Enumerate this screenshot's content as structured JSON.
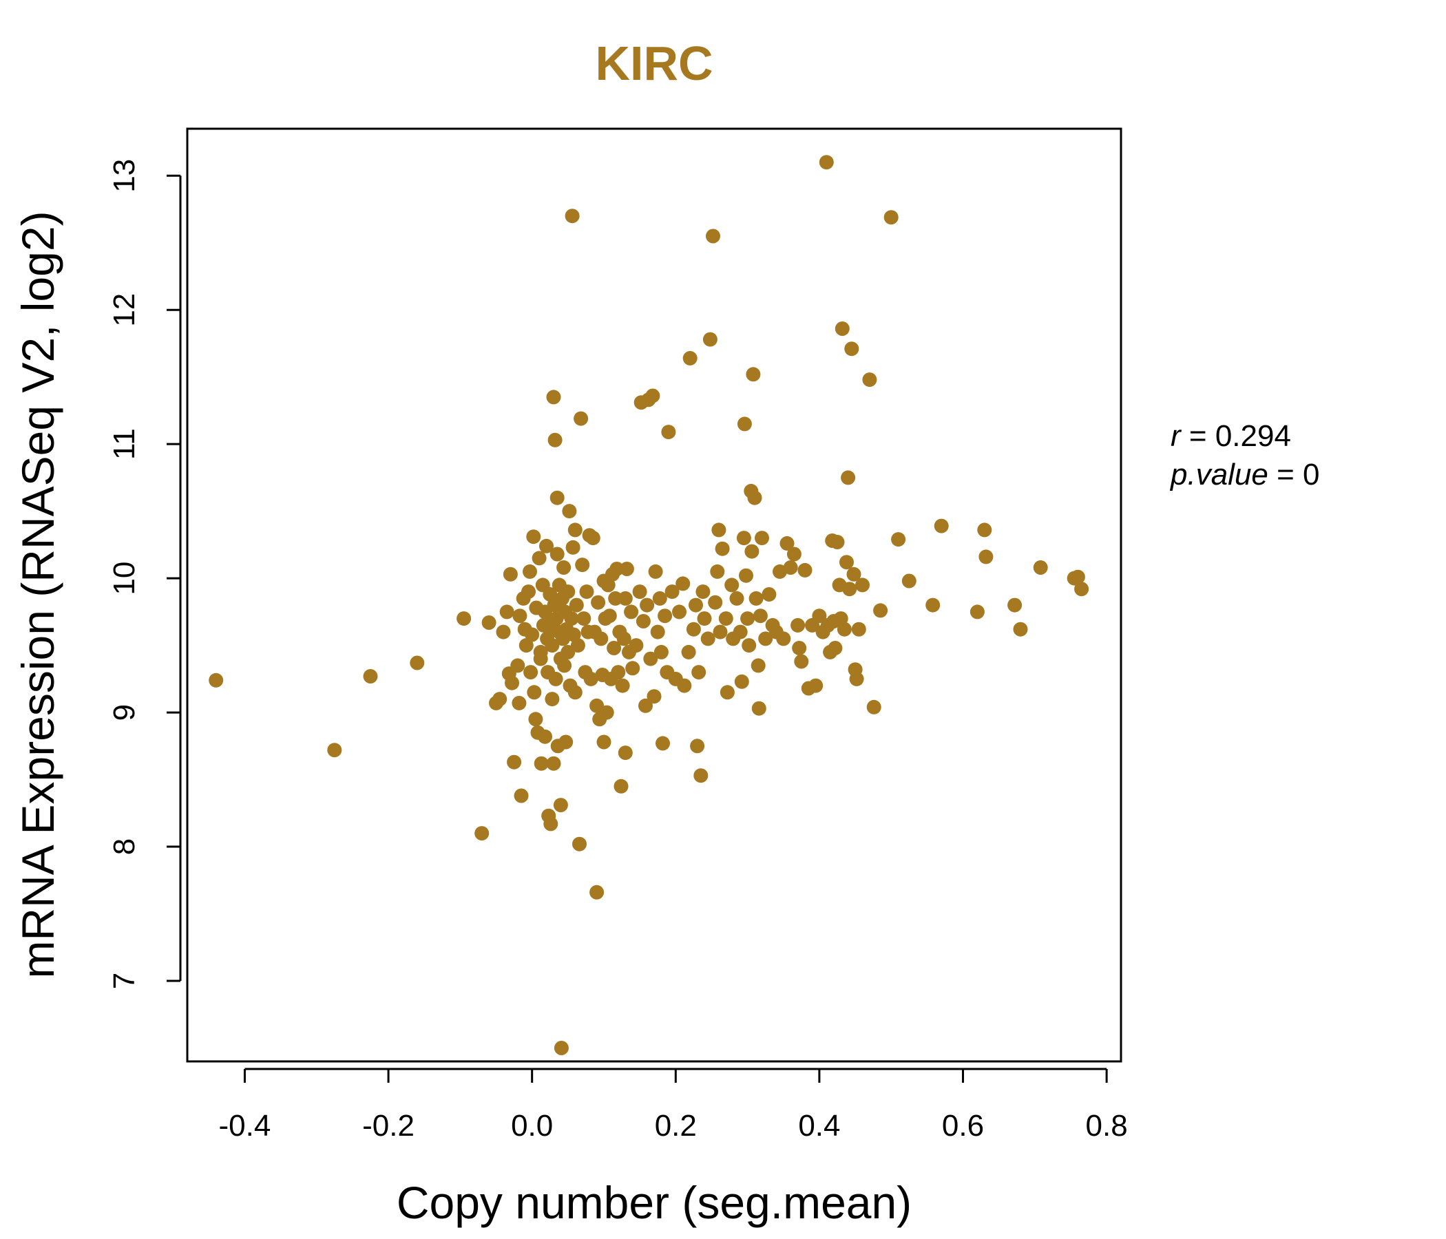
{
  "chart_data": {
    "type": "scatter",
    "title": "KIRC",
    "xlabel": "Copy number (seg.mean)",
    "ylabel": "mRNA Expression (RNASeq V2, log2)",
    "xlim": [
      -0.48,
      0.82
    ],
    "ylim": [
      6.4,
      13.35
    ],
    "xticks": [
      "-0.4",
      "-0.2",
      "0.0",
      "0.2",
      "0.4",
      "0.6",
      "0.8"
    ],
    "xtick_values": [
      -0.4,
      -0.2,
      0.0,
      0.2,
      0.4,
      0.6,
      0.8
    ],
    "yticks": [
      "7",
      "8",
      "9",
      "10",
      "11",
      "12",
      "13"
    ],
    "ytick_values": [
      7,
      8,
      9,
      10,
      11,
      12,
      13
    ],
    "grid": false,
    "point_color": "#A67820",
    "stats": {
      "r": "0.294",
      "p_value": "0"
    },
    "points": [
      [
        -0.44,
        9.24
      ],
      [
        -0.275,
        8.72
      ],
      [
        -0.225,
        9.27
      ],
      [
        -0.16,
        9.37
      ],
      [
        -0.095,
        9.7
      ],
      [
        -0.07,
        8.1
      ],
      [
        -0.06,
        9.67
      ],
      [
        -0.05,
        9.07
      ],
      [
        -0.045,
        9.1
      ],
      [
        -0.04,
        9.6
      ],
      [
        -0.035,
        9.75
      ],
      [
        -0.032,
        9.29
      ],
      [
        -0.03,
        10.03
      ],
      [
        -0.028,
        9.22
      ],
      [
        -0.025,
        8.63
      ],
      [
        -0.02,
        9.35
      ],
      [
        -0.018,
        9.07
      ],
      [
        -0.017,
        9.72
      ],
      [
        -0.015,
        8.38
      ],
      [
        -0.012,
        9.85
      ],
      [
        -0.01,
        9.62
      ],
      [
        -0.008,
        9.5
      ],
      [
        -0.005,
        9.9
      ],
      [
        -0.003,
        10.05
      ],
      [
        -0.002,
        9.3
      ],
      [
        0.0,
        9.58
      ],
      [
        0.002,
        10.31
      ],
      [
        0.003,
        9.15
      ],
      [
        0.005,
        8.95
      ],
      [
        0.006,
        9.78
      ],
      [
        0.008,
        8.85
      ],
      [
        0.01,
        10.15
      ],
      [
        0.012,
        9.45
      ],
      [
        0.012,
        9.4
      ],
      [
        0.013,
        8.62
      ],
      [
        0.015,
        9.95
      ],
      [
        0.016,
        9.65
      ],
      [
        0.018,
        8.82
      ],
      [
        0.018,
        9.75
      ],
      [
        0.02,
        10.24
      ],
      [
        0.021,
        9.55
      ],
      [
        0.022,
        9.3
      ],
      [
        0.023,
        8.23
      ],
      [
        0.025,
        9.88
      ],
      [
        0.025,
        9.62
      ],
      [
        0.026,
        8.17
      ],
      [
        0.027,
        9.68
      ],
      [
        0.028,
        9.1
      ],
      [
        0.028,
        9.5
      ],
      [
        0.03,
        11.35
      ],
      [
        0.03,
        8.62
      ],
      [
        0.031,
        9.8
      ],
      [
        0.032,
        11.03
      ],
      [
        0.033,
        9.25
      ],
      [
        0.034,
        9.7
      ],
      [
        0.035,
        10.18
      ],
      [
        0.035,
        10.6
      ],
      [
        0.036,
        8.75
      ],
      [
        0.038,
        9.6
      ],
      [
        0.038,
        9.95
      ],
      [
        0.04,
        8.31
      ],
      [
        0.04,
        9.4
      ],
      [
        0.041,
        6.5
      ],
      [
        0.042,
        9.85
      ],
      [
        0.043,
        9.55
      ],
      [
        0.044,
        10.08
      ],
      [
        0.045,
        9.35
      ],
      [
        0.046,
        9.75
      ],
      [
        0.047,
        8.78
      ],
      [
        0.048,
        9.62
      ],
      [
        0.05,
        9.45
      ],
      [
        0.05,
        9.9
      ],
      [
        0.052,
        10.5
      ],
      [
        0.053,
        9.2
      ],
      [
        0.055,
        9.7
      ],
      [
        0.056,
        12.7
      ],
      [
        0.057,
        10.23
      ],
      [
        0.058,
        9.58
      ],
      [
        0.06,
        9.15
      ],
      [
        0.06,
        10.36
      ],
      [
        0.062,
        9.8
      ],
      [
        0.064,
        9.5
      ],
      [
        0.066,
        8.02
      ],
      [
        0.068,
        11.19
      ],
      [
        0.07,
        10.1
      ],
      [
        0.072,
        9.7
      ],
      [
        0.074,
        9.3
      ],
      [
        0.076,
        9.9
      ],
      [
        0.078,
        9.6
      ],
      [
        0.08,
        10.32
      ],
      [
        0.082,
        9.25
      ],
      [
        0.085,
        10.3
      ],
      [
        0.087,
        9.6
      ],
      [
        0.09,
        7.66
      ],
      [
        0.09,
        9.05
      ],
      [
        0.092,
        9.82
      ],
      [
        0.094,
        8.95
      ],
      [
        0.096,
        9.55
      ],
      [
        0.098,
        9.28
      ],
      [
        0.1,
        8.78
      ],
      [
        0.1,
        9.98
      ],
      [
        0.102,
        9.7
      ],
      [
        0.104,
        9.0
      ],
      [
        0.106,
        9.95
      ],
      [
        0.108,
        9.72
      ],
      [
        0.11,
        9.25
      ],
      [
        0.112,
        10.03
      ],
      [
        0.114,
        9.48
      ],
      [
        0.116,
        9.85
      ],
      [
        0.118,
        10.07
      ],
      [
        0.12,
        9.3
      ],
      [
        0.122,
        9.6
      ],
      [
        0.124,
        8.45
      ],
      [
        0.126,
        9.2
      ],
      [
        0.128,
        9.55
      ],
      [
        0.13,
        8.7
      ],
      [
        0.13,
        9.85
      ],
      [
        0.132,
        10.07
      ],
      [
        0.135,
        9.45
      ],
      [
        0.138,
        9.75
      ],
      [
        0.14,
        9.33
      ],
      [
        0.145,
        9.5
      ],
      [
        0.15,
        9.9
      ],
      [
        0.152,
        11.31
      ],
      [
        0.155,
        9.68
      ],
      [
        0.158,
        9.05
      ],
      [
        0.16,
        9.8
      ],
      [
        0.162,
        11.33
      ],
      [
        0.165,
        9.4
      ],
      [
        0.168,
        11.36
      ],
      [
        0.17,
        9.12
      ],
      [
        0.172,
        10.05
      ],
      [
        0.175,
        9.6
      ],
      [
        0.178,
        9.85
      ],
      [
        0.18,
        9.45
      ],
      [
        0.182,
        8.77
      ],
      [
        0.185,
        9.72
      ],
      [
        0.188,
        9.3
      ],
      [
        0.19,
        11.09
      ],
      [
        0.195,
        9.9
      ],
      [
        0.2,
        9.25
      ],
      [
        0.205,
        9.75
      ],
      [
        0.21,
        9.96
      ],
      [
        0.212,
        9.2
      ],
      [
        0.218,
        9.45
      ],
      [
        0.22,
        11.64
      ],
      [
        0.225,
        9.62
      ],
      [
        0.228,
        9.8
      ],
      [
        0.23,
        8.75
      ],
      [
        0.232,
        9.3
      ],
      [
        0.235,
        8.53
      ],
      [
        0.238,
        9.9
      ],
      [
        0.24,
        9.7
      ],
      [
        0.245,
        9.55
      ],
      [
        0.248,
        11.78
      ],
      [
        0.252,
        12.55
      ],
      [
        0.255,
        9.82
      ],
      [
        0.258,
        10.05
      ],
      [
        0.26,
        10.36
      ],
      [
        0.262,
        9.6
      ],
      [
        0.265,
        10.22
      ],
      [
        0.27,
        9.7
      ],
      [
        0.272,
        9.15
      ],
      [
        0.278,
        9.95
      ],
      [
        0.28,
        9.55
      ],
      [
        0.285,
        9.85
      ],
      [
        0.29,
        9.6
      ],
      [
        0.292,
        9.23
      ],
      [
        0.295,
        10.3
      ],
      [
        0.296,
        11.15
      ],
      [
        0.298,
        10.02
      ],
      [
        0.3,
        9.7
      ],
      [
        0.302,
        9.5
      ],
      [
        0.305,
        10.65
      ],
      [
        0.306,
        10.2
      ],
      [
        0.308,
        11.52
      ],
      [
        0.31,
        10.6
      ],
      [
        0.312,
        9.85
      ],
      [
        0.315,
        9.35
      ],
      [
        0.316,
        9.03
      ],
      [
        0.318,
        9.72
      ],
      [
        0.32,
        10.3
      ],
      [
        0.325,
        9.55
      ],
      [
        0.33,
        9.88
      ],
      [
        0.335,
        9.65
      ],
      [
        0.34,
        9.6
      ],
      [
        0.345,
        10.05
      ],
      [
        0.35,
        9.55
      ],
      [
        0.355,
        10.26
      ],
      [
        0.36,
        10.08
      ],
      [
        0.365,
        10.18
      ],
      [
        0.37,
        9.65
      ],
      [
        0.372,
        9.48
      ],
      [
        0.375,
        9.38
      ],
      [
        0.38,
        10.06
      ],
      [
        0.385,
        9.18
      ],
      [
        0.39,
        9.65
      ],
      [
        0.395,
        9.2
      ],
      [
        0.4,
        9.72
      ],
      [
        0.405,
        9.6
      ],
      [
        0.41,
        13.1
      ],
      [
        0.412,
        9.65
      ],
      [
        0.415,
        9.45
      ],
      [
        0.418,
        10.28
      ],
      [
        0.42,
        9.68
      ],
      [
        0.422,
        9.48
      ],
      [
        0.425,
        10.27
      ],
      [
        0.428,
        9.95
      ],
      [
        0.43,
        9.7
      ],
      [
        0.432,
        11.86
      ],
      [
        0.435,
        9.62
      ],
      [
        0.438,
        10.12
      ],
      [
        0.44,
        10.75
      ],
      [
        0.442,
        9.92
      ],
      [
        0.445,
        11.71
      ],
      [
        0.448,
        10.03
      ],
      [
        0.45,
        9.32
      ],
      [
        0.452,
        9.25
      ],
      [
        0.455,
        9.62
      ],
      [
        0.46,
        9.95
      ],
      [
        0.47,
        11.48
      ],
      [
        0.476,
        9.04
      ],
      [
        0.485,
        9.76
      ],
      [
        0.5,
        12.69
      ],
      [
        0.51,
        10.29
      ],
      [
        0.525,
        9.98
      ],
      [
        0.558,
        9.8
      ],
      [
        0.57,
        10.39
      ],
      [
        0.62,
        9.75
      ],
      [
        0.63,
        10.36
      ],
      [
        0.632,
        10.16
      ],
      [
        0.672,
        9.8
      ],
      [
        0.68,
        9.62
      ],
      [
        0.708,
        10.08
      ],
      [
        0.755,
        10.0
      ],
      [
        0.76,
        10.01
      ],
      [
        0.765,
        9.92
      ]
    ]
  }
}
